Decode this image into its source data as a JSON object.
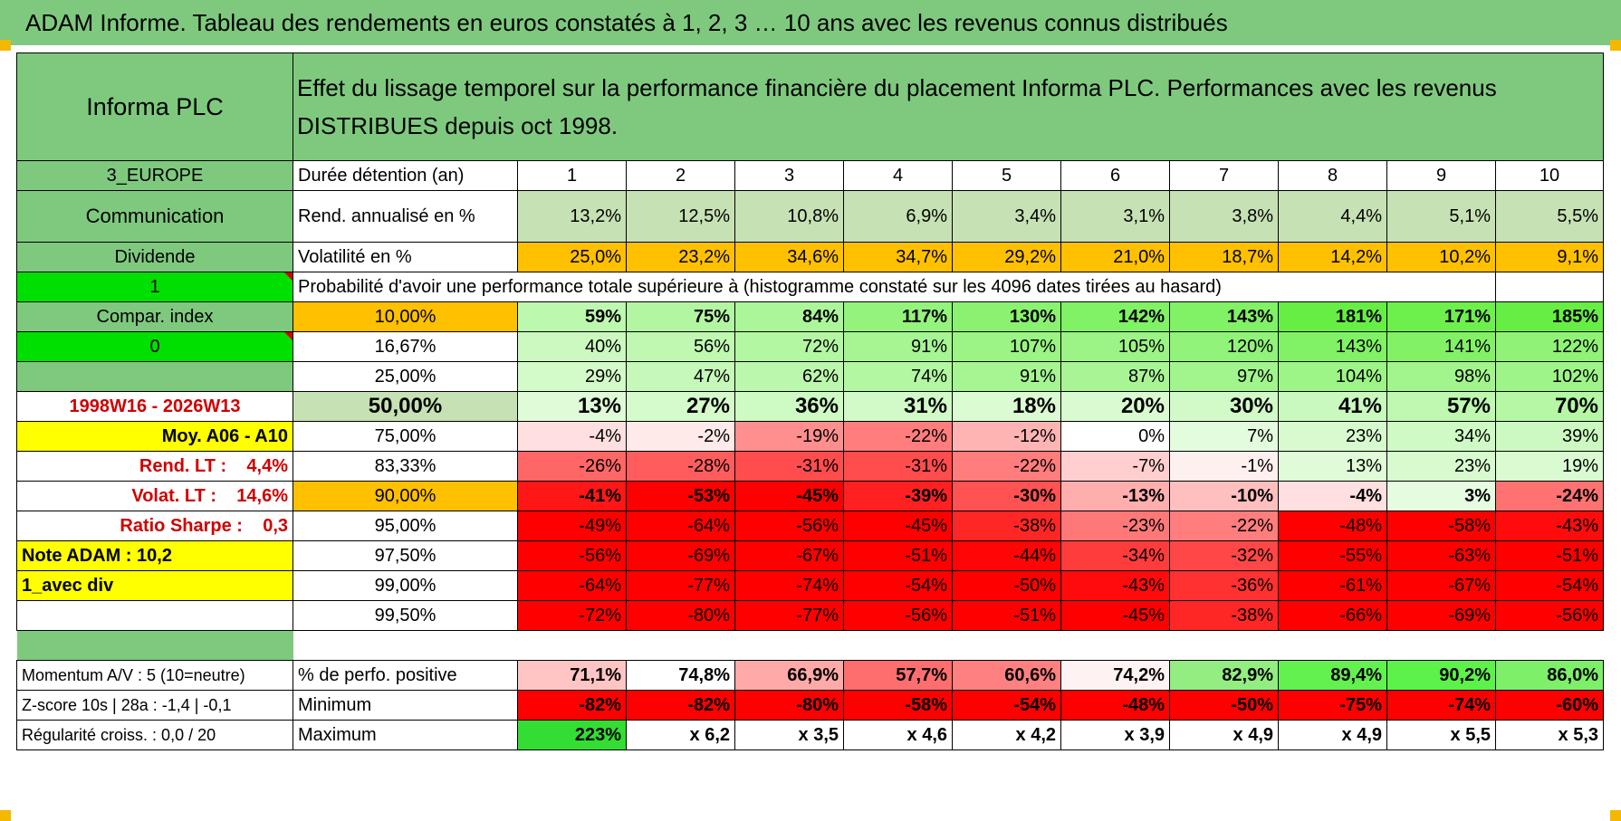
{
  "title": "ADAM Informe. Tableau des rendements en euros constatés à 1, 2, 3 … 10 ans avec les revenus connus distribués",
  "header": {
    "company": "Informa PLC",
    "description": "Effet du lissage temporel sur la performance financière du placement Informa PLC. Performances avec les revenus DISTRIBUES depuis oct 1998."
  },
  "sidebar": {
    "region": "3_EUROPE",
    "sector": "Communication",
    "income_type": "Dividende",
    "toggle1": "1",
    "compar_index": "Compar. index",
    "toggle2": "0",
    "period": "1998W16 - 2026W13",
    "moy": "Moy. A06 - A10",
    "rend_lt": "Rend. LT :    4,4%",
    "volat_lt": "Volat. LT :    14,6%",
    "sharpe": "Ratio Sharpe :    0,3",
    "note_adam": "Note ADAM : 10,2",
    "avec_div": "1_avec div"
  },
  "labels": {
    "duration": "Durée détention (an)",
    "rend": "Rend. annualisé en %",
    "volat": "Volatilité en %",
    "probability": "Probabilité d'avoir une performance totale supérieure à (histogramme constaté sur les 4096 dates tirées au hasard)"
  },
  "years": [
    "1",
    "2",
    "3",
    "4",
    "5",
    "6",
    "7",
    "8",
    "9",
    "10"
  ],
  "rend": [
    "13,2%",
    "12,5%",
    "10,8%",
    "6,9%",
    "3,4%",
    "3,1%",
    "3,8%",
    "4,4%",
    "5,1%",
    "5,5%"
  ],
  "volat": [
    "25,0%",
    "23,2%",
    "34,6%",
    "34,7%",
    "29,2%",
    "21,0%",
    "18,7%",
    "14,2%",
    "10,2%",
    "9,1%"
  ],
  "prob_rows": [
    {
      "label": "10,00%",
      "values": [
        "59%",
        "75%",
        "84%",
        "117%",
        "130%",
        "142%",
        "143%",
        "181%",
        "171%",
        "185%"
      ]
    },
    {
      "label": "16,67%",
      "values": [
        "40%",
        "56%",
        "72%",
        "91%",
        "107%",
        "105%",
        "120%",
        "143%",
        "141%",
        "122%"
      ]
    },
    {
      "label": "25,00%",
      "values": [
        "29%",
        "47%",
        "62%",
        "74%",
        "91%",
        "87%",
        "97%",
        "104%",
        "98%",
        "102%"
      ]
    },
    {
      "label": "50,00%",
      "values": [
        "13%",
        "27%",
        "36%",
        "31%",
        "18%",
        "20%",
        "30%",
        "41%",
        "57%",
        "70%"
      ]
    },
    {
      "label": "75,00%",
      "values": [
        "-4%",
        "-2%",
        "-19%",
        "-22%",
        "-12%",
        "0%",
        "7%",
        "23%",
        "34%",
        "39%"
      ]
    },
    {
      "label": "83,33%",
      "values": [
        "-26%",
        "-28%",
        "-31%",
        "-31%",
        "-22%",
        "-7%",
        "-1%",
        "13%",
        "23%",
        "19%"
      ]
    },
    {
      "label": "90,00%",
      "values": [
        "-41%",
        "-53%",
        "-45%",
        "-39%",
        "-30%",
        "-13%",
        "-10%",
        "-4%",
        "3%",
        "-24%"
      ]
    },
    {
      "label": "95,00%",
      "values": [
        "-49%",
        "-64%",
        "-56%",
        "-45%",
        "-38%",
        "-23%",
        "-22%",
        "-48%",
        "-58%",
        "-43%"
      ]
    },
    {
      "label": "97,50%",
      "values": [
        "-56%",
        "-69%",
        "-67%",
        "-51%",
        "-44%",
        "-34%",
        "-32%",
        "-55%",
        "-63%",
        "-51%"
      ]
    },
    {
      "label": "99,00%",
      "values": [
        "-64%",
        "-77%",
        "-74%",
        "-54%",
        "-50%",
        "-43%",
        "-36%",
        "-61%",
        "-67%",
        "-54%"
      ]
    },
    {
      "label": "99,50%",
      "values": [
        "-72%",
        "-80%",
        "-77%",
        "-56%",
        "-51%",
        "-45%",
        "-38%",
        "-66%",
        "-69%",
        "-56%"
      ]
    }
  ],
  "stats": [
    {
      "side": "Momentum A/V : 5 (10=neutre)",
      "label": "% de perfo. positive",
      "values": [
        "71,1%",
        "74,8%",
        "66,9%",
        "57,7%",
        "60,6%",
        "74,2%",
        "82,9%",
        "89,4%",
        "90,2%",
        "86,0%"
      ]
    },
    {
      "side": "Z-score 10s | 28a : -1,4 | -0,1",
      "label": "Minimum",
      "values": [
        "-82%",
        "-82%",
        "-80%",
        "-58%",
        "-54%",
        "-48%",
        "-50%",
        "-75%",
        "-74%",
        "-60%"
      ]
    },
    {
      "side": "Régularité croiss. : 0,0 / 20",
      "label": "Maximum",
      "values": [
        "223%",
        "x 6,2",
        "x 3,5",
        "x 4,6",
        "x 4,2",
        "x 3,9",
        "x 4,9",
        "x 4,9",
        "x 5,5",
        "x 5,3"
      ]
    }
  ],
  "colors": {
    "header_green": "#7fc97f",
    "light_green": "#c6e1b4",
    "orange": "#ffc000",
    "yellow": "#ffff00",
    "bright_green": "#00e000",
    "heat_red": "#ff0000",
    "heat_green": "#66ee44",
    "label_red": "#d00000"
  }
}
